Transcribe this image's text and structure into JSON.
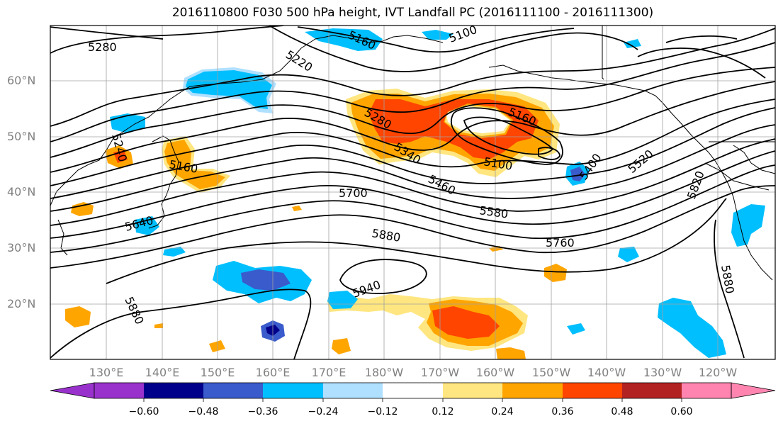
{
  "title": "2016110800 F030 500 hPa height, IVT Landfall PC (2016111100 - 2016111300)",
  "lat_labels": [
    "60°N",
    "50°N",
    "40°N",
    "30°N",
    "20°N"
  ],
  "lon_labels": [
    "130°E",
    "140°E",
    "150°E",
    "160°E",
    "170°E",
    "180°W",
    "170°W",
    "160°W",
    "150°W",
    "140°W",
    "130°W",
    "120°W"
  ],
  "contour_labels": [
    "5280",
    "5160",
    "5100",
    "5220",
    "5280",
    "5340",
    "5160",
    "5100",
    "5460",
    "5700",
    "5580",
    "5880",
    "5760",
    "5940",
    "5880",
    "5640",
    "5240",
    "5160",
    "5400",
    "5520",
    "5820",
    "5880"
  ],
  "colorbar": {
    "ticks": [
      "−0.60",
      "−0.48",
      "−0.36",
      "−0.24",
      "−0.12",
      "0.12",
      "0.24",
      "0.36",
      "0.48",
      "0.60"
    ],
    "colors": [
      "#9932cc",
      "#00008b",
      "#3a5bcc",
      "#00bfff",
      "#b0e0ff",
      "#ffffff",
      "#ffe680",
      "#ffa500",
      "#ff4500",
      "#b22222",
      "#ff85b0"
    ]
  }
}
